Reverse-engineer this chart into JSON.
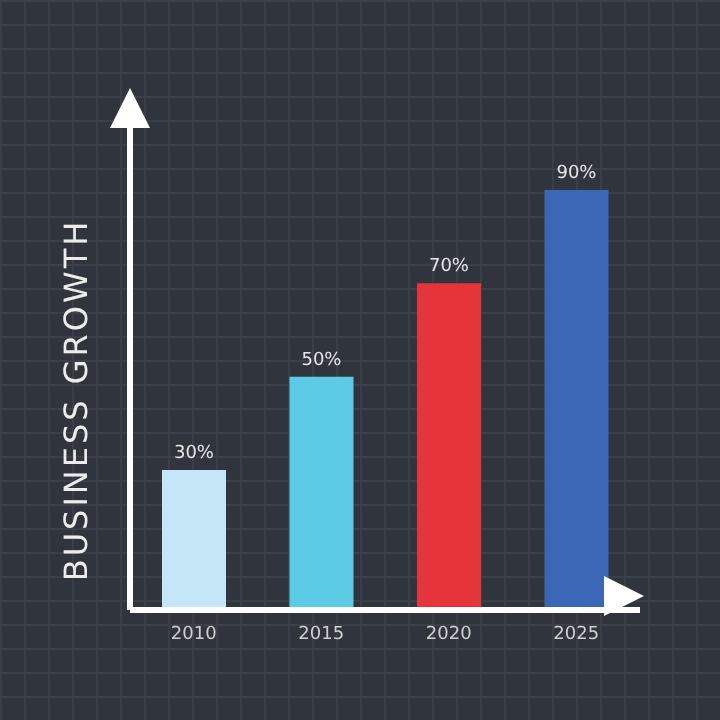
{
  "chart_data": {
    "type": "bar",
    "ylabel": "BUSINESS GROWTH",
    "categories": [
      "2010",
      "2015",
      "2020",
      "2025"
    ],
    "values": [
      30,
      50,
      70,
      90
    ],
    "colors": [
      "#c4e6f6",
      "#5ccbe6",
      "#e5343a",
      "#3a68b6"
    ],
    "value_labels": [
      "30%",
      "50%",
      "70%",
      "90%"
    ],
    "tick_labels": "x",
    "grid": false,
    "legend": false
  }
}
